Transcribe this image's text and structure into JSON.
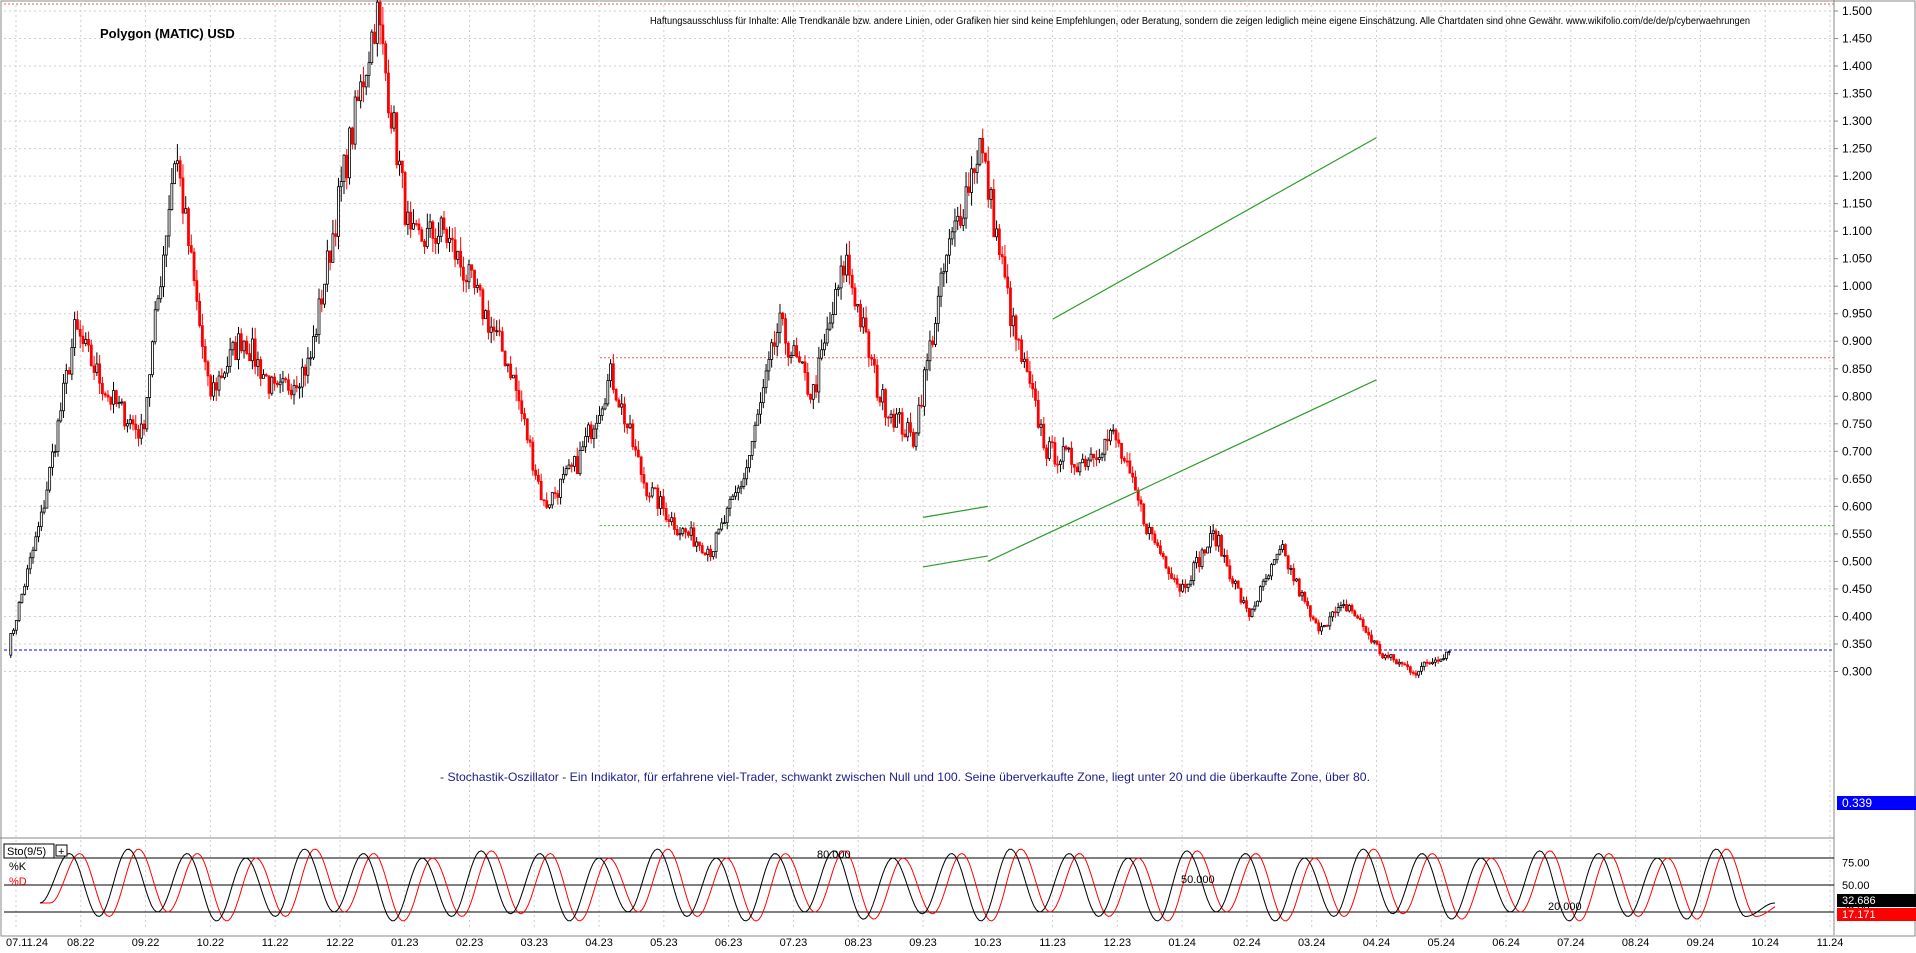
{
  "chart_data": [
    {
      "type": "candlestick",
      "title": "Polygon (MATIC) USD",
      "disclaimer": "Haftungsausschluss für Inhalte: Alle Trendkanäle bzw. andere Linien, oder Grafiken hier sind keine Empfehlungen, oder Beratung, sondern die zeigen lediglich meine eigene Einschätzung. Alle Chartdaten sind ohne Gewähr. www.wikifolio.com/de/de/p/cyberwaehrungen",
      "annotation": "- Stochastik-Oszillator - Ein Indikator, für erfahrene viel-Trader, schwankt zwischen Null und 100. Seine überverkaufte Zone, liegt unter 20 und die überkaufte Zone, über 80.",
      "ylim": [
        0.27,
        1.52
      ],
      "y_ticks": [
        "1.500",
        "1.450",
        "1.400",
        "1.350",
        "1.300",
        "1.250",
        "1.200",
        "1.150",
        "1.100",
        "1.050",
        "1.000",
        "0.950",
        "0.900",
        "0.850",
        "0.800",
        "0.750",
        "0.700",
        "0.650",
        "0.600",
        "0.550",
        "0.500",
        "0.450",
        "0.400",
        "0.350",
        "0.300"
      ],
      "x_labels": [
        "07.11.24",
        "08.22",
        "09.22",
        "10.22",
        "11.22",
        "12.22",
        "01.23",
        "02.23",
        "03.23",
        "04.23",
        "05.23",
        "06.23",
        "07.23",
        "08.23",
        "09.23",
        "10.23",
        "11.23",
        "12.23",
        "01.24",
        "02.24",
        "03.24",
        "04.24",
        "05.24",
        "06.24",
        "07.24",
        "08.24",
        "09.24",
        "10.24",
        "11.24"
      ],
      "last_price_label": "0.339",
      "last_price": 0.339,
      "reference_lines": [
        {
          "value": 0.87,
          "color": "#e06060",
          "style": "dotted"
        },
        {
          "value": 0.565,
          "color": "#40c040",
          "style": "dotted"
        }
      ],
      "key_closes": [
        {
          "date": "07.22",
          "close": 0.34
        },
        {
          "date": "07.22",
          "close": 0.58
        },
        {
          "date": "08.22",
          "close": 0.92
        },
        {
          "date": "09.22",
          "close": 0.8
        },
        {
          "date": "10.22",
          "close": 0.73
        },
        {
          "date": "11.22",
          "close": 1.25
        },
        {
          "date": "11.22",
          "close": 0.8
        },
        {
          "date": "12.22",
          "close": 0.91
        },
        {
          "date": "12.22",
          "close": 0.8
        },
        {
          "date": "01.23",
          "close": 0.86
        },
        {
          "date": "02.23",
          "close": 1.2
        },
        {
          "date": "02.23",
          "close": 1.5
        },
        {
          "date": "03.23",
          "close": 1.08
        },
        {
          "date": "04.23",
          "close": 1.1
        },
        {
          "date": "05.23",
          "close": 0.98
        },
        {
          "date": "05.23",
          "close": 0.85
        },
        {
          "date": "06.23",
          "close": 0.6
        },
        {
          "date": "07.23",
          "close": 0.68
        },
        {
          "date": "07.23",
          "close": 0.84
        },
        {
          "date": "08.23",
          "close": 0.64
        },
        {
          "date": "09.23",
          "close": 0.56
        },
        {
          "date": "10.23",
          "close": 0.52
        },
        {
          "date": "11.23",
          "close": 0.66
        },
        {
          "date": "11.23",
          "close": 0.93
        },
        {
          "date": "12.23",
          "close": 0.8
        },
        {
          "date": "01.24",
          "close": 1.05
        },
        {
          "date": "01.24",
          "close": 0.8
        },
        {
          "date": "02.24",
          "close": 0.72
        },
        {
          "date": "03.24",
          "close": 1.05
        },
        {
          "date": "03.24",
          "close": 1.26
        },
        {
          "date": "04.24",
          "close": 0.92
        },
        {
          "date": "04.24",
          "close": 0.7
        },
        {
          "date": "05.24",
          "close": 0.68
        },
        {
          "date": "06.24",
          "close": 0.73
        },
        {
          "date": "07.24",
          "close": 0.56
        },
        {
          "date": "07.24",
          "close": 0.45
        },
        {
          "date": "08.24",
          "close": 0.55
        },
        {
          "date": "08.24",
          "close": 0.4
        },
        {
          "date": "09.24",
          "close": 0.52
        },
        {
          "date": "09.24",
          "close": 0.38
        },
        {
          "date": "10.24",
          "close": 0.42
        },
        {
          "date": "11.24",
          "close": 0.33
        },
        {
          "date": "11.24",
          "close": 0.3
        },
        {
          "date": "11.24",
          "close": 0.339
        }
      ],
      "trendlines": [
        {
          "color": "#2a9d2a",
          "from": {
            "date": "11.23",
            "value": 0.94
          },
          "to": {
            "date": "04.24",
            "value": 1.27
          }
        },
        {
          "color": "#2a9d2a",
          "from": {
            "date": "10.23",
            "value": 0.5
          },
          "to": {
            "date": "04.24",
            "value": 0.83
          }
        },
        {
          "color": "#2a9d2a",
          "from": {
            "date": "09.23",
            "value": 0.58
          },
          "to": {
            "date": "10.23",
            "value": 0.6
          }
        },
        {
          "color": "#2a9d2a",
          "from": {
            "date": "09.23",
            "value": 0.49
          },
          "to": {
            "date": "10.23",
            "value": 0.51
          }
        }
      ],
      "colors": {
        "up": "#000000",
        "down": "#ff0000",
        "price_tag": "#0000ff"
      }
    },
    {
      "type": "line",
      "title": "Sto(9/5)",
      "series": [
        {
          "name": "%K",
          "color": "#000000"
        },
        {
          "name": "%D",
          "color": "#ff0000"
        }
      ],
      "ylim": [
        0,
        100
      ],
      "y_ticks": [
        "75.00",
        "50.00",
        "25.00"
      ],
      "levels": [
        {
          "value": 80,
          "label": "80.000"
        },
        {
          "value": 50,
          "label": "50.000"
        },
        {
          "value": 20,
          "label": "20.000"
        }
      ],
      "last_values": {
        "k": "32.686",
        "d": "17.171"
      },
      "k_swings": [
        30,
        85,
        15,
        90,
        20,
        85,
        10,
        80,
        15,
        90,
        20,
        85,
        10,
        80,
        15,
        88,
        18,
        85,
        10,
        80,
        20,
        90,
        15,
        80,
        10,
        85,
        20,
        88,
        12,
        80,
        18,
        85,
        10,
        90,
        20,
        85,
        15,
        80,
        10,
        88,
        20,
        85,
        10,
        80,
        15,
        90,
        18,
        85,
        12,
        80,
        20,
        88,
        10,
        85,
        15,
        80,
        12,
        90,
        15,
        30
      ]
    }
  ]
}
